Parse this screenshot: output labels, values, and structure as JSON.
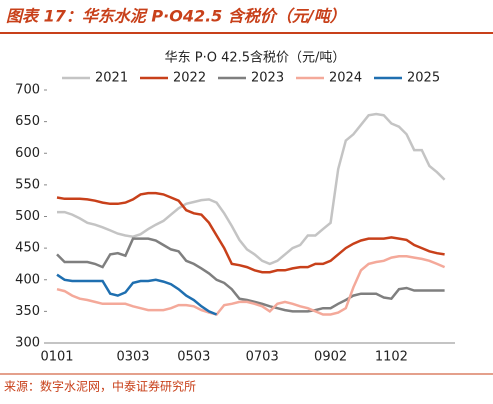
{
  "header": {
    "title": "图表 17：华东水泥 P·O42.5 含税价（元/吨）"
  },
  "chart_data": {
    "type": "line",
    "title": "华东 P·O 42.5含税价（元/吨）",
    "categories": [
      "0101",
      null,
      null,
      null,
      null,
      null,
      null,
      null,
      null,
      null,
      "0303",
      null,
      null,
      null,
      null,
      null,
      null,
      null,
      "0503",
      null,
      null,
      null,
      null,
      null,
      null,
      null,
      null,
      "0703",
      null,
      null,
      null,
      null,
      null,
      null,
      null,
      null,
      "0902",
      null,
      null,
      null,
      null,
      null,
      null,
      null,
      "1102",
      null,
      null,
      null,
      null,
      null,
      null,
      null
    ],
    "series": [
      {
        "name": "2021",
        "color": "#c4c4c4",
        "values": [
          507,
          507,
          503,
          497,
          490,
          487,
          483,
          478,
          473,
          470,
          468,
          472,
          480,
          487,
          493,
          503,
          513,
          520,
          523,
          526,
          527,
          522,
          505,
          485,
          463,
          448,
          440,
          430,
          425,
          430,
          440,
          450,
          455,
          470,
          470,
          480,
          490,
          575,
          620,
          630,
          645,
          660,
          662,
          660,
          647,
          642,
          630,
          605,
          605,
          580,
          570,
          558
        ]
      },
      {
        "name": "2022",
        "color": "#c8401a",
        "values": [
          530,
          528,
          528,
          528,
          527,
          525,
          522,
          520,
          520,
          522,
          527,
          535,
          537,
          537,
          535,
          530,
          525,
          510,
          505,
          503,
          490,
          470,
          450,
          425,
          423,
          420,
          415,
          412,
          412,
          415,
          415,
          418,
          420,
          420,
          425,
          425,
          430,
          440,
          450,
          457,
          462,
          465,
          465,
          465,
          467,
          465,
          463,
          455,
          450,
          445,
          442,
          440
        ]
      },
      {
        "name": "2023",
        "color": "#7f7f7f",
        "values": [
          440,
          428,
          428,
          428,
          428,
          425,
          420,
          440,
          442,
          438,
          465,
          465,
          465,
          462,
          455,
          448,
          445,
          430,
          425,
          418,
          410,
          400,
          395,
          385,
          370,
          368,
          365,
          362,
          358,
          355,
          352,
          350,
          350,
          350,
          352,
          355,
          355,
          362,
          368,
          375,
          378,
          378,
          378,
          372,
          370,
          385,
          387,
          383,
          383,
          383,
          383,
          383
        ]
      },
      {
        "name": "2024",
        "color": "#f4a99a",
        "values": [
          385,
          382,
          375,
          370,
          368,
          365,
          362,
          362,
          362,
          362,
          358,
          355,
          352,
          352,
          352,
          355,
          360,
          360,
          358,
          352,
          348,
          345,
          360,
          362,
          365,
          365,
          362,
          358,
          350,
          362,
          365,
          362,
          358,
          355,
          350,
          345,
          345,
          348,
          355,
          388,
          415,
          425,
          428,
          430,
          435,
          437,
          437,
          435,
          433,
          430,
          425,
          420
        ]
      },
      {
        "name": "2025",
        "color": "#1f6fb0",
        "values": [
          408,
          400,
          398,
          398,
          398,
          398,
          398,
          378,
          375,
          380,
          395,
          398,
          398,
          400,
          397,
          393,
          385,
          375,
          368,
          358,
          350,
          345,
          null,
          null,
          null,
          null,
          null,
          null,
          null,
          null,
          null,
          null,
          null,
          null,
          null,
          null,
          null,
          null,
          null,
          null,
          null,
          null,
          null,
          null,
          null,
          null,
          null,
          null,
          null,
          null,
          null,
          null
        ]
      }
    ],
    "ylim": [
      300,
      700
    ],
    "yticks": [
      300,
      350,
      400,
      450,
      500,
      550,
      600,
      650,
      700
    ]
  },
  "source": "来源：数字水泥网，中泰证券研究所"
}
